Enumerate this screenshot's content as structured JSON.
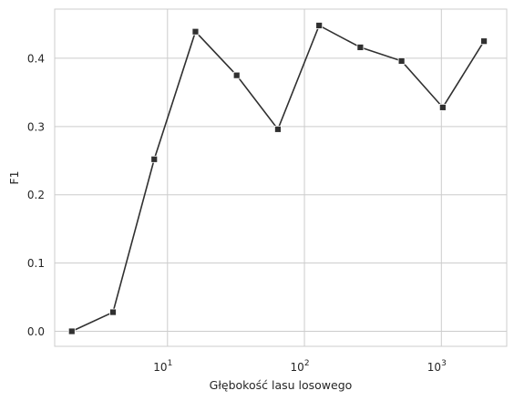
{
  "chart_data": {
    "type": "line",
    "xscale": "log",
    "xlabel": "Głębokość lasu losowego",
    "ylabel": "F1",
    "xlim": [
      1.5,
      3000
    ],
    "ylim": [
      -0.022,
      0.472
    ],
    "x_ticks": [
      {
        "value": 10,
        "base": "10",
        "exp": "1"
      },
      {
        "value": 100,
        "base": "10",
        "exp": "2"
      },
      {
        "value": 1000,
        "base": "10",
        "exp": "3"
      }
    ],
    "y_ticks": [
      {
        "value": 0.0,
        "label": "0.0"
      },
      {
        "value": 0.1,
        "label": "0.1"
      },
      {
        "value": 0.2,
        "label": "0.2"
      },
      {
        "value": 0.3,
        "label": "0.3"
      },
      {
        "value": 0.4,
        "label": "0.4"
      }
    ],
    "grid": true,
    "series": [
      {
        "x": [
          2,
          4,
          8,
          16,
          32,
          64,
          128,
          256,
          512,
          1024,
          2048
        ],
        "y": [
          0.0,
          0.028,
          0.252,
          0.439,
          0.375,
          0.296,
          0.448,
          0.416,
          0.396,
          0.328,
          0.425
        ],
        "color": "#303030",
        "marker": "square"
      }
    ]
  }
}
